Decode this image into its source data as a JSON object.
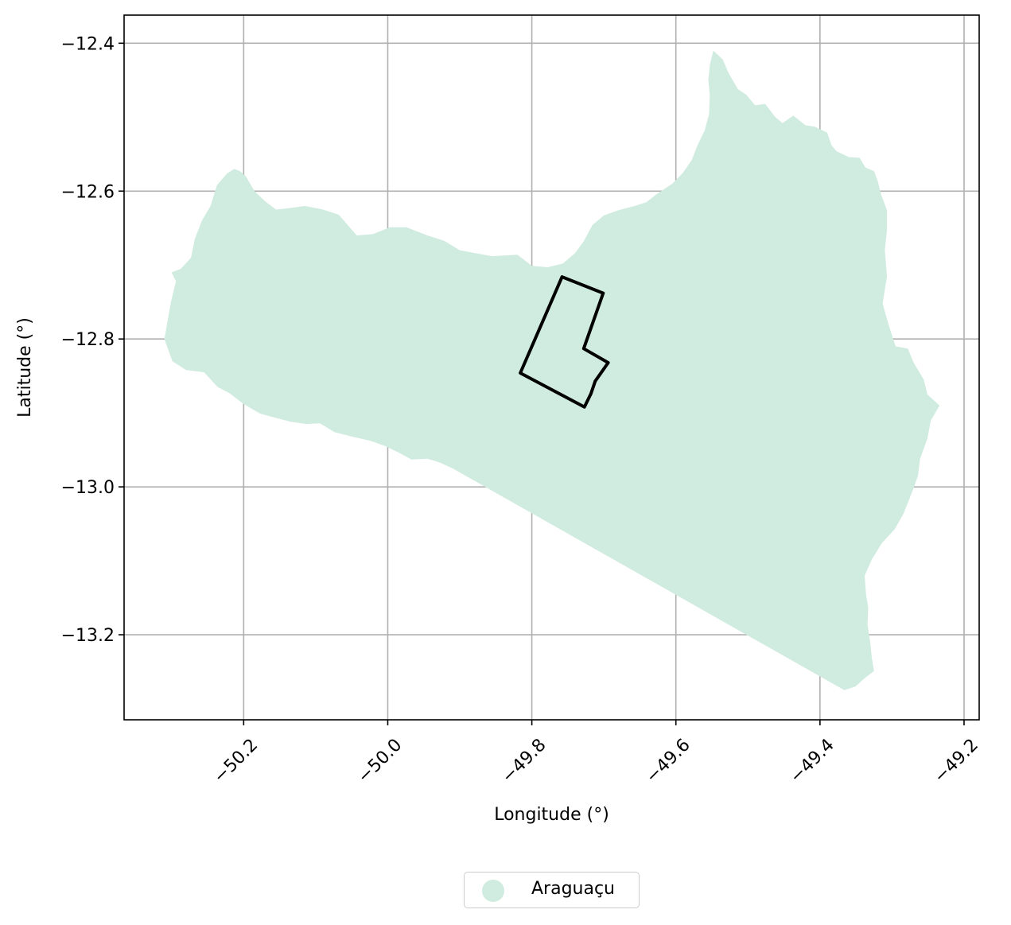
{
  "chart_data": {
    "type": "map",
    "xlabel": "Longitude (°)",
    "ylabel": "Latitude (°)",
    "xlim": [
      -50.366,
      -49.179
    ],
    "ylim": [
      -13.315,
      -12.362
    ],
    "xticks": [
      -50.2,
      -50.0,
      -49.8,
      -49.6,
      -49.4,
      -49.2
    ],
    "xtick_labels": [
      "−50.2",
      "−50.0",
      "−49.8",
      "−49.6",
      "−49.4",
      "−49.2"
    ],
    "yticks": [
      -12.4,
      -12.6,
      -12.8,
      -13.0,
      -13.2
    ],
    "ytick_labels": [
      "−12.4",
      "−12.6",
      "−12.8",
      "−13.0",
      "−13.2"
    ],
    "grid": true,
    "legend_position": "bottom-center",
    "legend": [
      {
        "label": "Araguaçu",
        "color": "#d0ebdf"
      }
    ],
    "region": {
      "name": "Araguaçu",
      "fill": "#d0ebdf",
      "outline": [
        [
          -49.548,
          -12.41
        ],
        [
          -49.535,
          -12.422
        ],
        [
          -49.527,
          -12.44
        ],
        [
          -49.514,
          -12.462
        ],
        [
          -49.502,
          -12.47
        ],
        [
          -49.49,
          -12.484
        ],
        [
          -49.476,
          -12.482
        ],
        [
          -49.462,
          -12.5
        ],
        [
          -49.452,
          -12.508
        ],
        [
          -49.437,
          -12.498
        ],
        [
          -49.42,
          -12.511
        ],
        [
          -49.407,
          -12.513
        ],
        [
          -49.39,
          -12.521
        ],
        [
          -49.384,
          -12.538
        ],
        [
          -49.377,
          -12.546
        ],
        [
          -49.36,
          -12.554
        ],
        [
          -49.345,
          -12.555
        ],
        [
          -49.337,
          -12.568
        ],
        [
          -49.325,
          -12.573
        ],
        [
          -49.32,
          -12.586
        ],
        [
          -49.315,
          -12.605
        ],
        [
          -49.307,
          -12.626
        ],
        [
          -49.307,
          -12.652
        ],
        [
          -49.31,
          -12.68
        ],
        [
          -49.307,
          -12.715
        ],
        [
          -49.313,
          -12.752
        ],
        [
          -49.305,
          -12.78
        ],
        [
          -49.295,
          -12.81
        ],
        [
          -49.278,
          -12.813
        ],
        [
          -49.27,
          -12.832
        ],
        [
          -49.256,
          -12.855
        ],
        [
          -49.251,
          -12.875
        ],
        [
          -49.234,
          -12.89
        ],
        [
          -49.246,
          -12.91
        ],
        [
          -49.251,
          -12.935
        ],
        [
          -49.261,
          -12.962
        ],
        [
          -49.264,
          -12.985
        ],
        [
          -49.271,
          -13.004
        ],
        [
          -49.284,
          -13.036
        ],
        [
          -49.296,
          -13.057
        ],
        [
          -49.314,
          -13.076
        ],
        [
          -49.328,
          -13.098
        ],
        [
          -49.338,
          -13.12
        ],
        [
          -49.336,
          -13.146
        ],
        [
          -49.333,
          -13.163
        ],
        [
          -49.334,
          -13.186
        ],
        [
          -49.33,
          -13.212
        ],
        [
          -49.328,
          -13.232
        ],
        [
          -49.325,
          -13.249
        ],
        [
          -49.337,
          -13.258
        ],
        [
          -49.351,
          -13.27
        ],
        [
          -49.366,
          -13.275
        ],
        [
          -49.91,
          -12.975
        ],
        [
          -49.928,
          -12.967
        ],
        [
          -49.945,
          -12.962
        ],
        [
          -49.967,
          -12.963
        ],
        [
          -49.986,
          -12.953
        ],
        [
          -50.003,
          -12.945
        ],
        [
          -50.023,
          -12.938
        ],
        [
          -50.036,
          -12.935
        ],
        [
          -50.05,
          -12.932
        ],
        [
          -50.074,
          -12.926
        ],
        [
          -50.094,
          -12.914
        ],
        [
          -50.113,
          -12.915
        ],
        [
          -50.135,
          -12.912
        ],
        [
          -50.154,
          -12.907
        ],
        [
          -50.177,
          -12.901
        ],
        [
          -50.2,
          -12.888
        ],
        [
          -50.22,
          -12.873
        ],
        [
          -50.236,
          -12.865
        ],
        [
          -50.255,
          -12.845
        ],
        [
          -50.28,
          -12.842
        ],
        [
          -50.299,
          -12.83
        ],
        [
          -50.31,
          -12.8
        ],
        [
          -50.306,
          -12.778
        ],
        [
          -50.301,
          -12.75
        ],
        [
          -50.294,
          -12.722
        ],
        [
          -50.3,
          -12.71
        ],
        [
          -50.287,
          -12.705
        ],
        [
          -50.273,
          -12.69
        ],
        [
          -50.268,
          -12.665
        ],
        [
          -50.258,
          -12.64
        ],
        [
          -50.246,
          -12.62
        ],
        [
          -50.237,
          -12.592
        ],
        [
          -50.223,
          -12.576
        ],
        [
          -50.213,
          -12.57
        ],
        [
          -50.205,
          -12.573
        ],
        [
          -50.197,
          -12.58
        ],
        [
          -50.185,
          -12.6
        ],
        [
          -50.17,
          -12.614
        ],
        [
          -50.155,
          -12.625
        ],
        [
          -50.137,
          -12.623
        ],
        [
          -50.115,
          -12.62
        ],
        [
          -50.09,
          -12.625
        ],
        [
          -50.068,
          -12.632
        ],
        [
          -50.043,
          -12.66
        ],
        [
          -50.02,
          -12.658
        ],
        [
          -49.997,
          -12.649
        ],
        [
          -49.974,
          -12.649
        ],
        [
          -49.945,
          -12.66
        ],
        [
          -49.922,
          -12.667
        ],
        [
          -49.9,
          -12.68
        ],
        [
          -49.878,
          -12.684
        ],
        [
          -49.855,
          -12.688
        ],
        [
          -49.82,
          -12.686
        ],
        [
          -49.8,
          -12.701
        ],
        [
          -49.778,
          -12.703
        ],
        [
          -49.757,
          -12.698
        ],
        [
          -49.74,
          -12.684
        ],
        [
          -49.728,
          -12.668
        ],
        [
          -49.716,
          -12.646
        ],
        [
          -49.7,
          -12.633
        ],
        [
          -49.68,
          -12.626
        ],
        [
          -49.657,
          -12.62
        ],
        [
          -49.641,
          -12.615
        ],
        [
          -49.628,
          -12.605
        ],
        [
          -49.605,
          -12.59
        ],
        [
          -49.59,
          -12.575
        ],
        [
          -49.578,
          -12.558
        ],
        [
          -49.57,
          -12.538
        ],
        [
          -49.56,
          -12.518
        ],
        [
          -49.554,
          -12.496
        ],
        [
          -49.553,
          -12.47
        ],
        [
          -49.555,
          -12.45
        ],
        [
          -49.553,
          -12.43
        ],
        [
          -49.548,
          -12.41
        ]
      ]
    },
    "boundary": {
      "stroke": "#000000",
      "outline": [
        [
          -49.758,
          -12.716
        ],
        [
          -49.701,
          -12.738
        ],
        [
          -49.728,
          -12.813
        ],
        [
          -49.694,
          -12.832
        ],
        [
          -49.712,
          -12.857
        ],
        [
          -49.718,
          -12.874
        ],
        [
          -49.727,
          -12.892
        ],
        [
          -49.816,
          -12.846
        ],
        [
          -49.758,
          -12.716
        ]
      ]
    }
  }
}
